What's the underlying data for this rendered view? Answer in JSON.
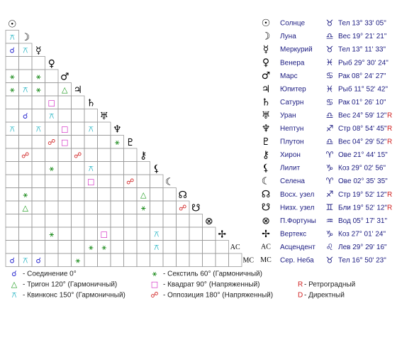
{
  "planets": [
    {
      "glyph": "☉",
      "name": "Солнце",
      "sign": "♉",
      "position": "Тел 13° 33' 05\"",
      "retro": null
    },
    {
      "glyph": "☽",
      "name": "Луна",
      "sign": "♎",
      "position": "Вес 19° 21' 21\"",
      "retro": null
    },
    {
      "glyph": "☿",
      "name": "Меркурий",
      "sign": "♉",
      "position": "Тел 13° 11' 33\"",
      "retro": null
    },
    {
      "glyph": "♀",
      "name": "Венера",
      "sign": "♓",
      "position": "Рыб 29° 30' 24\"",
      "retro": null
    },
    {
      "glyph": "♂",
      "name": "Марс",
      "sign": "♋",
      "position": "Рак 08° 24' 27\"",
      "retro": null
    },
    {
      "glyph": "♃",
      "name": "Юпитер",
      "sign": "♓",
      "position": "Рыб 11° 52' 42\"",
      "retro": null
    },
    {
      "glyph": "♄",
      "name": "Сатурн",
      "sign": "♋",
      "position": "Рак 01° 26' 10\"",
      "retro": null
    },
    {
      "glyph": "♅",
      "name": "Уран",
      "sign": "♎",
      "position": "Вес 24° 59' 12\"",
      "retro": "R"
    },
    {
      "glyph": "♆",
      "name": "Нептун",
      "sign": "♐",
      "position": "Стр 08° 54' 45\"",
      "retro": "R"
    },
    {
      "glyph": "♇",
      "name": "Плутон",
      "sign": "♎",
      "position": "Вес 04° 29' 52\"",
      "retro": "R"
    },
    {
      "glyph": "⚷",
      "name": "Хирон",
      "sign": "♈",
      "position": "Ове 21° 44' 15\"",
      "retro": null
    },
    {
      "glyph": "⚸",
      "name": "Лилит",
      "sign": "♑",
      "position": "Коз 29° 02' 56\"",
      "retro": null
    },
    {
      "glyph": "☾",
      "name": "Селена",
      "sign": "♈",
      "position": "Ове 02° 35' 35\"",
      "retro": null
    },
    {
      "glyph": "☊",
      "name": "Восх. узел",
      "sign": "♐",
      "position": "Стр 19° 52' 12\"",
      "retro": "R"
    },
    {
      "glyph": "☋",
      "name": "Низх. узел",
      "sign": "♊",
      "position": "Бли 19° 52' 12\"",
      "retro": "R"
    },
    {
      "glyph": "⊗",
      "name": "П.Фортуны",
      "sign": "♒",
      "position": "Вод 05° 17' 31\"",
      "retro": null
    },
    {
      "glyph": "✢",
      "name": "Вертекс",
      "sign": "♑",
      "position": "Коз 27° 01' 24\"",
      "retro": null
    },
    {
      "glyph": "AC",
      "name": "Асцендент",
      "sign": "♌",
      "position": "Лев 29° 29' 16\"",
      "retro": null
    },
    {
      "glyph": "MC",
      "name": "Сер. Неба",
      "sign": "♉",
      "position": "Тел 16° 50' 23\"",
      "retro": null
    }
  ],
  "aspect_grid": {
    "rows": [
      [],
      [
        "⚻"
      ],
      [
        "☌",
        "⚻"
      ],
      [
        null,
        null,
        null
      ],
      [
        "⚹",
        null,
        "⚹",
        null
      ],
      [
        "⚹",
        "⚻",
        "⚹",
        null,
        "△"
      ],
      [
        null,
        null,
        null,
        "□",
        null,
        null
      ],
      [
        null,
        "☌",
        null,
        "⚻",
        null,
        null,
        null
      ],
      [
        "⚻",
        null,
        "⚻",
        null,
        "□",
        null,
        "⚻",
        null
      ],
      [
        null,
        null,
        null,
        "☍",
        "□",
        null,
        null,
        null,
        "⚹"
      ],
      [
        null,
        "☍",
        null,
        null,
        null,
        "☍",
        null,
        null,
        null,
        null
      ],
      [
        null,
        null,
        null,
        "⚹",
        null,
        null,
        "⚻",
        null,
        null,
        null,
        null
      ],
      [
        null,
        null,
        null,
        null,
        null,
        null,
        "□",
        null,
        null,
        "☍",
        null,
        null
      ],
      [
        null,
        "⚹",
        null,
        null,
        null,
        null,
        null,
        null,
        null,
        null,
        "△",
        null,
        null
      ],
      [
        null,
        "△",
        null,
        null,
        null,
        null,
        null,
        null,
        null,
        null,
        "⚹",
        null,
        null,
        "☍"
      ],
      [
        null,
        null,
        null,
        null,
        null,
        null,
        null,
        null,
        null,
        null,
        null,
        null,
        null,
        null,
        null
      ],
      [
        null,
        null,
        null,
        "⚹",
        null,
        null,
        null,
        "□",
        null,
        null,
        null,
        "⚻",
        null,
        null,
        null,
        null
      ],
      [
        null,
        null,
        null,
        null,
        null,
        null,
        "⚹",
        "⚹",
        null,
        null,
        null,
        "⚻",
        null,
        null,
        null,
        null,
        null
      ],
      [
        "☌",
        "⚻",
        "☌",
        null,
        null,
        "⚹",
        null,
        null,
        null,
        null,
        null,
        null,
        null,
        null,
        null,
        null,
        null,
        null
      ]
    ]
  },
  "legend": {
    "aspects": [
      {
        "symbol": "☌",
        "label": "- Соединение 0°",
        "color": "#2a2ad0"
      },
      {
        "symbol": "△",
        "label": "- Тригон 120° (Гармоничный)",
        "color": "#1a9a1a"
      },
      {
        "symbol": "⚻",
        "label": "- Квинконс 150° (Гармоничный)",
        "color": "#1ab0c0"
      },
      {
        "symbol": "⚹",
        "label": "- Секстиль 60° (Гармоничный)",
        "color": "#1a8a1a"
      },
      {
        "symbol": "□",
        "label": "- Квадрат 90° (Напряженный)",
        "color": "#d020c0"
      },
      {
        "symbol": "☍",
        "label": "- Оппозиция 180° (Напряженный)",
        "color": "#d02020"
      }
    ],
    "motion": [
      {
        "letter": "R",
        "label": "- Ретроградный",
        "color": "#d02020"
      },
      {
        "letter": "D",
        "label": "- Директный",
        "color": "#d02020"
      }
    ]
  }
}
